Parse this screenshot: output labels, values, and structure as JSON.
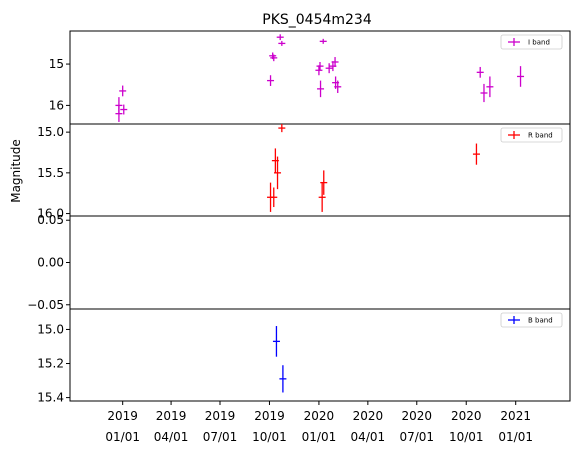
{
  "chart_data": {
    "type": "scatter",
    "title": "PKS_0454m234",
    "ylabel": "Magnitude",
    "xlabel": "",
    "x_range": [
      "2018-09-25",
      "2021-04-12"
    ],
    "x_ticks": [
      {
        "date": "2019-01-01",
        "line1": "2019",
        "line2": "01/01"
      },
      {
        "date": "2019-04-01",
        "line1": "2019",
        "line2": "04/01"
      },
      {
        "date": "2019-07-01",
        "line1": "2019",
        "line2": "07/01"
      },
      {
        "date": "2019-10-01",
        "line1": "2019",
        "line2": "10/01"
      },
      {
        "date": "2020-01-01",
        "line1": "2020",
        "line2": "01/01"
      },
      {
        "date": "2020-04-01",
        "line1": "2020",
        "line2": "04/01"
      },
      {
        "date": "2020-07-01",
        "line1": "2020",
        "line2": "07/01"
      },
      {
        "date": "2020-10-01",
        "line1": "2020",
        "line2": "10/01"
      },
      {
        "date": "2021-01-01",
        "line1": "2021",
        "line2": "01/01"
      }
    ],
    "y_inverted": true,
    "grid": false,
    "legend_position": "top-right",
    "panels": [
      {
        "id": "I",
        "legend": "I band",
        "color": "#cc00cc",
        "ylim": [
          16.45,
          14.2
        ],
        "yticks": [
          {
            "value": 15,
            "label": "15"
          },
          {
            "value": 16,
            "label": "16"
          }
        ],
        "points": [
          {
            "x": "2018-12-25",
            "y": 16.0,
            "err": 0.2
          },
          {
            "x": "2018-12-25",
            "y": 16.2,
            "err": 0.2
          },
          {
            "x": "2019-01-01",
            "y": 15.65,
            "err": 0.13
          },
          {
            "x": "2019-01-03",
            "y": 16.1,
            "err": 0.12
          },
          {
            "x": "2019-10-03",
            "y": 15.4,
            "err": 0.13
          },
          {
            "x": "2019-10-07",
            "y": 14.8,
            "err": 0.08
          },
          {
            "x": "2019-10-09",
            "y": 14.85,
            "err": 0.08
          },
          {
            "x": "2019-10-21",
            "y": 14.35,
            "err": 0.07
          },
          {
            "x": "2019-10-24",
            "y": 14.5,
            "err": 0.06
          },
          {
            "x": "2020-01-01",
            "y": 15.15,
            "err": 0.12
          },
          {
            "x": "2020-01-03",
            "y": 15.05,
            "err": 0.1
          },
          {
            "x": "2020-01-04",
            "y": 15.6,
            "err": 0.2
          },
          {
            "x": "2020-01-09",
            "y": 14.45,
            "err": 0.06
          },
          {
            "x": "2020-01-20",
            "y": 15.1,
            "err": 0.12
          },
          {
            "x": "2020-01-27",
            "y": 15.05,
            "err": 0.12
          },
          {
            "x": "2020-01-31",
            "y": 14.95,
            "err": 0.12
          },
          {
            "x": "2020-02-01",
            "y": 15.45,
            "err": 0.15
          },
          {
            "x": "2020-02-05",
            "y": 15.55,
            "err": 0.15
          },
          {
            "x": "2020-10-27",
            "y": 15.2,
            "err": 0.13
          },
          {
            "x": "2020-11-03",
            "y": 15.7,
            "err": 0.22
          },
          {
            "x": "2020-11-14",
            "y": 15.55,
            "err": 0.25
          },
          {
            "x": "2021-01-10",
            "y": 15.3,
            "err": 0.25
          }
        ]
      },
      {
        "id": "R",
        "legend": "R band",
        "color": "#ff0000",
        "ylim": [
          16.03,
          14.9
        ],
        "yticks": [
          {
            "value": 15,
            "label": "15.0"
          },
          {
            "value": 15.5,
            "label": "15.5"
          },
          {
            "value": 16,
            "label": "16.0"
          }
        ],
        "points": [
          {
            "x": "2019-10-03",
            "y": 15.8,
            "err": 0.18
          },
          {
            "x": "2019-10-09",
            "y": 15.8,
            "err": 0.12
          },
          {
            "x": "2019-10-12",
            "y": 15.35,
            "err": 0.15
          },
          {
            "x": "2019-10-16",
            "y": 15.5,
            "err": 0.2
          },
          {
            "x": "2019-10-24",
            "y": 14.95,
            "err": 0.05
          },
          {
            "x": "2020-01-07",
            "y": 15.8,
            "err": 0.18
          },
          {
            "x": "2020-01-10",
            "y": 15.62,
            "err": 0.15
          },
          {
            "x": "2020-10-20",
            "y": 15.27,
            "err": 0.13
          }
        ]
      },
      {
        "id": "empty",
        "legend": "",
        "color": "#000000",
        "ylim": [
          -0.055,
          0.055
        ],
        "yticks": [
          {
            "value": 0.05,
            "label": "0.05"
          },
          {
            "value": 0,
            "label": "0.00"
          },
          {
            "value": -0.05,
            "label": "−0.05"
          }
        ],
        "points": []
      },
      {
        "id": "B",
        "legend": "B band",
        "color": "#0000ff",
        "ylim": [
          15.42,
          14.88
        ],
        "yticks": [
          {
            "value": 15.0,
            "label": "15.0"
          },
          {
            "value": 15.2,
            "label": "15.2"
          },
          {
            "value": 15.4,
            "label": "15.4"
          }
        ],
        "points": [
          {
            "x": "2019-10-14",
            "y": 15.07,
            "err": 0.09
          },
          {
            "x": "2019-10-26",
            "y": 15.29,
            "err": 0.08
          }
        ]
      }
    ]
  }
}
